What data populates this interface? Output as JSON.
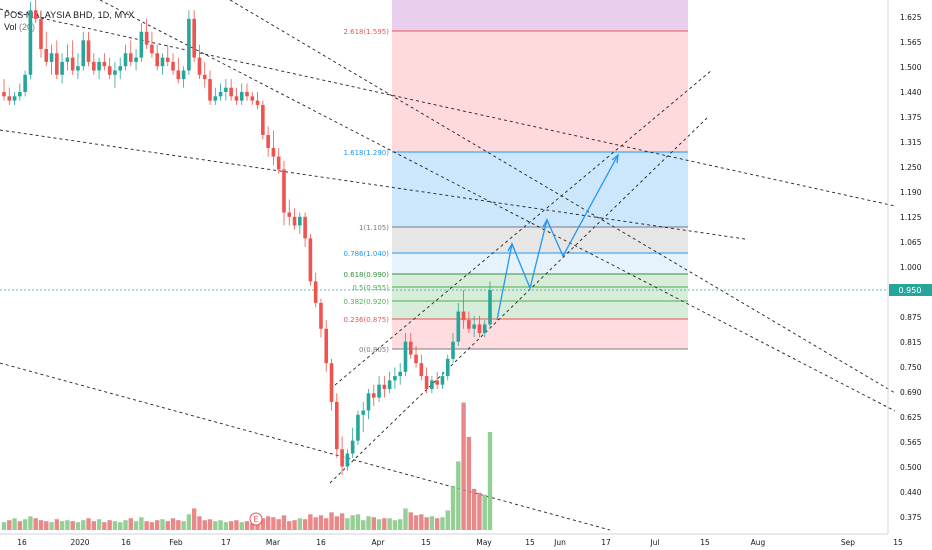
{
  "header": {
    "title": "POS MALAYSIA BHD, 1D, MYX",
    "volume_label": "Vol",
    "volume_value": "(20)"
  },
  "price_tag": "0.950",
  "chart_data": {
    "type": "candlestick",
    "title": "POS MALAYSIA BHD, 1D, MYX",
    "y_axis_ticks": [
      "1.625",
      "1.565",
      "1.500",
      "1.440",
      "1.375",
      "1.315",
      "1.250",
      "1.190",
      "1.125",
      "1.065",
      "1.000",
      "0.950",
      "0.875",
      "0.815",
      "0.750",
      "0.690",
      "0.625",
      "0.565",
      "0.500",
      "0.440",
      "0.375"
    ],
    "x_axis_ticks": [
      "16",
      "2020",
      "16",
      "Feb",
      "17",
      "Mar",
      "16",
      "Apr",
      "15",
      "May",
      "15",
      "Jun",
      "17",
      "Jul",
      "15",
      "Aug",
      "Sep",
      "15"
    ],
    "last_price": 0.95,
    "fib_levels": [
      {
        "label": "2.618(1.595)",
        "value": 1.595
      },
      {
        "label": "1.618(1.290)",
        "value": 1.29
      },
      {
        "label": "1(1.105)",
        "value": 1.105
      },
      {
        "label": "0.786(1.040)",
        "value": 1.04
      },
      {
        "label": "0.618(0.990)",
        "value": 0.99
      },
      {
        "label": "0.5(0.955)",
        "value": 0.955
      },
      {
        "label": "0.382(0.920)",
        "value": 0.92
      },
      {
        "label": "0.236(0.875)",
        "value": 0.875
      },
      {
        "label": "0(0.805)",
        "value": 0.805
      }
    ],
    "event_marker": "E",
    "candles": [
      [
        1.41,
        1.44,
        1.39,
        1.4
      ],
      [
        1.4,
        1.42,
        1.38,
        1.39
      ],
      [
        1.39,
        1.41,
        1.38,
        1.4
      ],
      [
        1.4,
        1.43,
        1.39,
        1.41
      ],
      [
        1.41,
        1.46,
        1.4,
        1.45
      ],
      [
        1.45,
        1.62,
        1.44,
        1.6
      ],
      [
        1.6,
        1.66,
        1.57,
        1.58
      ],
      [
        1.58,
        1.6,
        1.49,
        1.51
      ],
      [
        1.51,
        1.55,
        1.47,
        1.48
      ],
      [
        1.48,
        1.52,
        1.45,
        1.5
      ],
      [
        1.5,
        1.53,
        1.44,
        1.45
      ],
      [
        1.45,
        1.5,
        1.43,
        1.48
      ],
      [
        1.48,
        1.52,
        1.46,
        1.49
      ],
      [
        1.49,
        1.53,
        1.45,
        1.46
      ],
      [
        1.46,
        1.5,
        1.44,
        1.47
      ],
      [
        1.47,
        1.55,
        1.46,
        1.53
      ],
      [
        1.53,
        1.55,
        1.47,
        1.48
      ],
      [
        1.48,
        1.5,
        1.45,
        1.46
      ],
      [
        1.46,
        1.49,
        1.44,
        1.48
      ],
      [
        1.48,
        1.5,
        1.46,
        1.47
      ],
      [
        1.47,
        1.49,
        1.44,
        1.45
      ],
      [
        1.45,
        1.48,
        1.42,
        1.46
      ],
      [
        1.46,
        1.49,
        1.44,
        1.47
      ],
      [
        1.47,
        1.52,
        1.46,
        1.5
      ],
      [
        1.5,
        1.53,
        1.47,
        1.48
      ],
      [
        1.48,
        1.51,
        1.46,
        1.49
      ],
      [
        1.49,
        1.57,
        1.48,
        1.55
      ],
      [
        1.55,
        1.58,
        1.51,
        1.52
      ],
      [
        1.52,
        1.55,
        1.49,
        1.5
      ],
      [
        1.5,
        1.52,
        1.46,
        1.47
      ],
      [
        1.47,
        1.5,
        1.45,
        1.49
      ],
      [
        1.49,
        1.52,
        1.47,
        1.48
      ],
      [
        1.48,
        1.5,
        1.45,
        1.46
      ],
      [
        1.46,
        1.49,
        1.43,
        1.44
      ],
      [
        1.44,
        1.47,
        1.42,
        1.46
      ],
      [
        1.46,
        1.6,
        1.45,
        1.58
      ],
      [
        1.58,
        1.6,
        1.48,
        1.49
      ],
      [
        1.49,
        1.52,
        1.44,
        1.45
      ],
      [
        1.45,
        1.48,
        1.42,
        1.44
      ],
      [
        1.44,
        1.46,
        1.38,
        1.39
      ],
      [
        1.39,
        1.42,
        1.38,
        1.4
      ],
      [
        1.4,
        1.43,
        1.39,
        1.41
      ],
      [
        1.41,
        1.44,
        1.39,
        1.42
      ],
      [
        1.42,
        1.44,
        1.39,
        1.4
      ],
      [
        1.4,
        1.42,
        1.38,
        1.39
      ],
      [
        1.39,
        1.43,
        1.38,
        1.41
      ],
      [
        1.41,
        1.43,
        1.39,
        1.4
      ],
      [
        1.4,
        1.41,
        1.38,
        1.39
      ],
      [
        1.39,
        1.41,
        1.37,
        1.38
      ],
      [
        1.38,
        1.39,
        1.3,
        1.31
      ],
      [
        1.31,
        1.33,
        1.26,
        1.28
      ],
      [
        1.28,
        1.32,
        1.24,
        1.26
      ],
      [
        1.26,
        1.28,
        1.22,
        1.23
      ],
      [
        1.23,
        1.25,
        1.1,
        1.13
      ],
      [
        1.13,
        1.16,
        1.1,
        1.12
      ],
      [
        1.12,
        1.14,
        1.09,
        1.1
      ],
      [
        1.1,
        1.13,
        1.08,
        1.12
      ],
      [
        1.12,
        1.13,
        1.05,
        1.07
      ],
      [
        1.07,
        1.08,
        0.96,
        0.97
      ],
      [
        0.97,
        0.99,
        0.91,
        0.92
      ],
      [
        0.92,
        0.93,
        0.84,
        0.86
      ],
      [
        0.86,
        0.88,
        0.76,
        0.78
      ],
      [
        0.78,
        0.79,
        0.67,
        0.69
      ],
      [
        0.69,
        0.71,
        0.56,
        0.58
      ],
      [
        0.58,
        0.61,
        0.52,
        0.54
      ],
      [
        0.54,
        0.58,
        0.53,
        0.57
      ],
      [
        0.57,
        0.63,
        0.56,
        0.6
      ],
      [
        0.6,
        0.67,
        0.59,
        0.66
      ],
      [
        0.66,
        0.69,
        0.62,
        0.67
      ],
      [
        0.67,
        0.72,
        0.65,
        0.71
      ],
      [
        0.71,
        0.73,
        0.68,
        0.7
      ],
      [
        0.7,
        0.75,
        0.69,
        0.73
      ],
      [
        0.73,
        0.75,
        0.7,
        0.72
      ],
      [
        0.72,
        0.76,
        0.71,
        0.74
      ],
      [
        0.74,
        0.77,
        0.72,
        0.75
      ],
      [
        0.75,
        0.78,
        0.73,
        0.76
      ],
      [
        0.76,
        0.85,
        0.75,
        0.83
      ],
      [
        0.83,
        0.85,
        0.79,
        0.8
      ],
      [
        0.8,
        0.82,
        0.77,
        0.78
      ],
      [
        0.78,
        0.8,
        0.74,
        0.75
      ],
      [
        0.75,
        0.77,
        0.71,
        0.72
      ],
      [
        0.72,
        0.75,
        0.71,
        0.74
      ],
      [
        0.74,
        0.76,
        0.72,
        0.73
      ],
      [
        0.73,
        0.76,
        0.72,
        0.75
      ],
      [
        0.75,
        0.8,
        0.74,
        0.79
      ],
      [
        0.79,
        0.85,
        0.78,
        0.83
      ],
      [
        0.83,
        0.92,
        0.82,
        0.9
      ],
      [
        0.9,
        0.95,
        0.86,
        0.88
      ],
      [
        0.88,
        0.9,
        0.85,
        0.86
      ],
      [
        0.86,
        0.89,
        0.84,
        0.87
      ],
      [
        0.87,
        0.89,
        0.84,
        0.85
      ],
      [
        0.85,
        0.88,
        0.84,
        0.87
      ],
      [
        0.87,
        0.97,
        0.86,
        0.95
      ]
    ],
    "volumes": [
      [
        8,
        1
      ],
      [
        10,
        0
      ],
      [
        12,
        1
      ],
      [
        9,
        0
      ],
      [
        11,
        1
      ],
      [
        14,
        1
      ],
      [
        12,
        0
      ],
      [
        10,
        0
      ],
      [
        9,
        0
      ],
      [
        8,
        1
      ],
      [
        11,
        0
      ],
      [
        9,
        1
      ],
      [
        10,
        1
      ],
      [
        9,
        0
      ],
      [
        8,
        1
      ],
      [
        10,
        1
      ],
      [
        12,
        0
      ],
      [
        9,
        0
      ],
      [
        11,
        1
      ],
      [
        8,
        0
      ],
      [
        10,
        0
      ],
      [
        9,
        1
      ],
      [
        8,
        1
      ],
      [
        10,
        1
      ],
      [
        12,
        0
      ],
      [
        9,
        1
      ],
      [
        13,
        1
      ],
      [
        9,
        0
      ],
      [
        8,
        0
      ],
      [
        10,
        0
      ],
      [
        11,
        1
      ],
      [
        9,
        0
      ],
      [
        12,
        0
      ],
      [
        10,
        0
      ],
      [
        9,
        1
      ],
      [
        16,
        1
      ],
      [
        22,
        0
      ],
      [
        14,
        0
      ],
      [
        10,
        0
      ],
      [
        11,
        0
      ],
      [
        9,
        1
      ],
      [
        10,
        1
      ],
      [
        8,
        1
      ],
      [
        9,
        0
      ],
      [
        10,
        0
      ],
      [
        8,
        1
      ],
      [
        9,
        0
      ],
      [
        7,
        0
      ],
      [
        10,
        0
      ],
      [
        12,
        0
      ],
      [
        14,
        0
      ],
      [
        13,
        0
      ],
      [
        11,
        0
      ],
      [
        15,
        0
      ],
      [
        9,
        0
      ],
      [
        10,
        0
      ],
      [
        12,
        1
      ],
      [
        11,
        0
      ],
      [
        16,
        0
      ],
      [
        13,
        0
      ],
      [
        15,
        0
      ],
      [
        12,
        0
      ],
      [
        18,
        0
      ],
      [
        14,
        0
      ],
      [
        17,
        0
      ],
      [
        12,
        1
      ],
      [
        15,
        1
      ],
      [
        16,
        1
      ],
      [
        10,
        1
      ],
      [
        14,
        1
      ],
      [
        13,
        0
      ],
      [
        11,
        1
      ],
      [
        12,
        0
      ],
      [
        12,
        1
      ],
      [
        10,
        1
      ],
      [
        11,
        1
      ],
      [
        22,
        1
      ],
      [
        18,
        0
      ],
      [
        15,
        0
      ],
      [
        16,
        0
      ],
      [
        13,
        0
      ],
      [
        14,
        1
      ],
      [
        12,
        0
      ],
      [
        13,
        1
      ],
      [
        20,
        1
      ],
      [
        45,
        1
      ],
      [
        70,
        1
      ],
      [
        130,
        0
      ],
      [
        95,
        0
      ],
      [
        42,
        0
      ],
      [
        38,
        0
      ],
      [
        36,
        1
      ],
      [
        100,
        1
      ]
    ]
  }
}
